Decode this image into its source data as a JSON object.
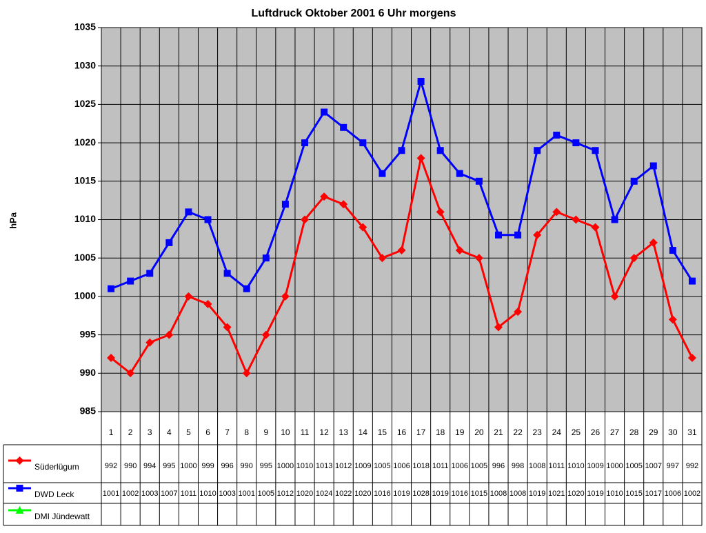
{
  "chart_data": {
    "type": "line",
    "title": "Luftdruck Oktober 2001 6 Uhr morgens",
    "y_label": "hPa",
    "categories": [
      "1",
      "2",
      "3",
      "4",
      "5",
      "6",
      "7",
      "8",
      "9",
      "10",
      "11",
      "12",
      "13",
      "14",
      "15",
      "16",
      "17",
      "18",
      "19",
      "20",
      "21",
      "22",
      "23",
      "24",
      "25",
      "26",
      "27",
      "28",
      "29",
      "30",
      "31"
    ],
    "series": [
      {
        "name": "Süderlügum",
        "color": "#ff0000",
        "marker": "diamond",
        "values": [
          992,
          990,
          994,
          995,
          1000,
          999,
          996,
          990,
          995,
          1000,
          1010,
          1013,
          1012,
          1009,
          1005,
          1006,
          1018,
          1011,
          1006,
          1005,
          996,
          998,
          1008,
          1011,
          1010,
          1009,
          1000,
          1005,
          1007,
          997,
          992
        ]
      },
      {
        "name": "DWD Leck",
        "color": "#0000ff",
        "marker": "square",
        "values": [
          1001,
          1002,
          1003,
          1007,
          1011,
          1010,
          1003,
          1001,
          1005,
          1012,
          1020,
          1024,
          1022,
          1020,
          1016,
          1019,
          1028,
          1019,
          1016,
          1015,
          1008,
          1008,
          1019,
          1021,
          1020,
          1019,
          1010,
          1015,
          1017,
          1006,
          1002
        ]
      },
      {
        "name": "DMI Jündewatt",
        "color": "#00ff00",
        "marker": "triangle",
        "values": [
          null,
          null,
          null,
          null,
          null,
          null,
          null,
          null,
          null,
          null,
          null,
          null,
          null,
          null,
          null,
          null,
          null,
          null,
          null,
          null,
          null,
          null,
          null,
          null,
          null,
          null,
          null,
          null,
          null,
          null,
          null
        ]
      }
    ],
    "ylim": [
      985,
      1035
    ],
    "yticks": [
      985,
      990,
      995,
      1000,
      1005,
      1010,
      1015,
      1020,
      1025,
      1030,
      1035
    ],
    "grid": true,
    "plot_background": "#c0c0c0",
    "data_table": true
  }
}
